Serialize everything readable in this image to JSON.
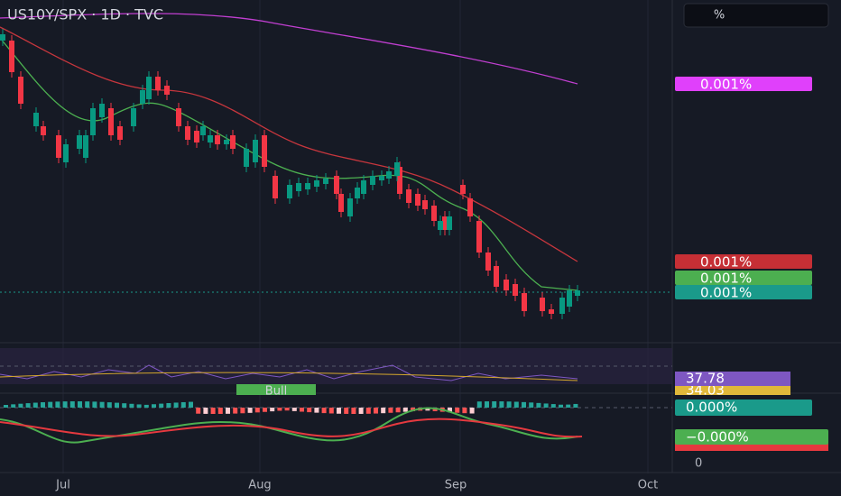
{
  "header": {
    "title": "US10Y/SPX · 1D · TVC",
    "unit_button": "%"
  },
  "price_labels": [
    {
      "text": "0.001%",
      "color": "#e040fb"
    },
    {
      "text": "0.001%",
      "color": "#c62f35"
    },
    {
      "text": "0.001%",
      "color": "#4caf50"
    },
    {
      "text": "0.001%",
      "color": "#1a9a8a"
    }
  ],
  "indicators": {
    "rsi_value": "37.78",
    "rsi_ma": "34.03",
    "signal": "Bull",
    "macd_value": "0.000%",
    "macd_signal": "−0.000%"
  },
  "axis": {
    "x_labels": [
      "Jul",
      "Aug",
      "Sep",
      "Oct"
    ],
    "zero": "0"
  }
}
